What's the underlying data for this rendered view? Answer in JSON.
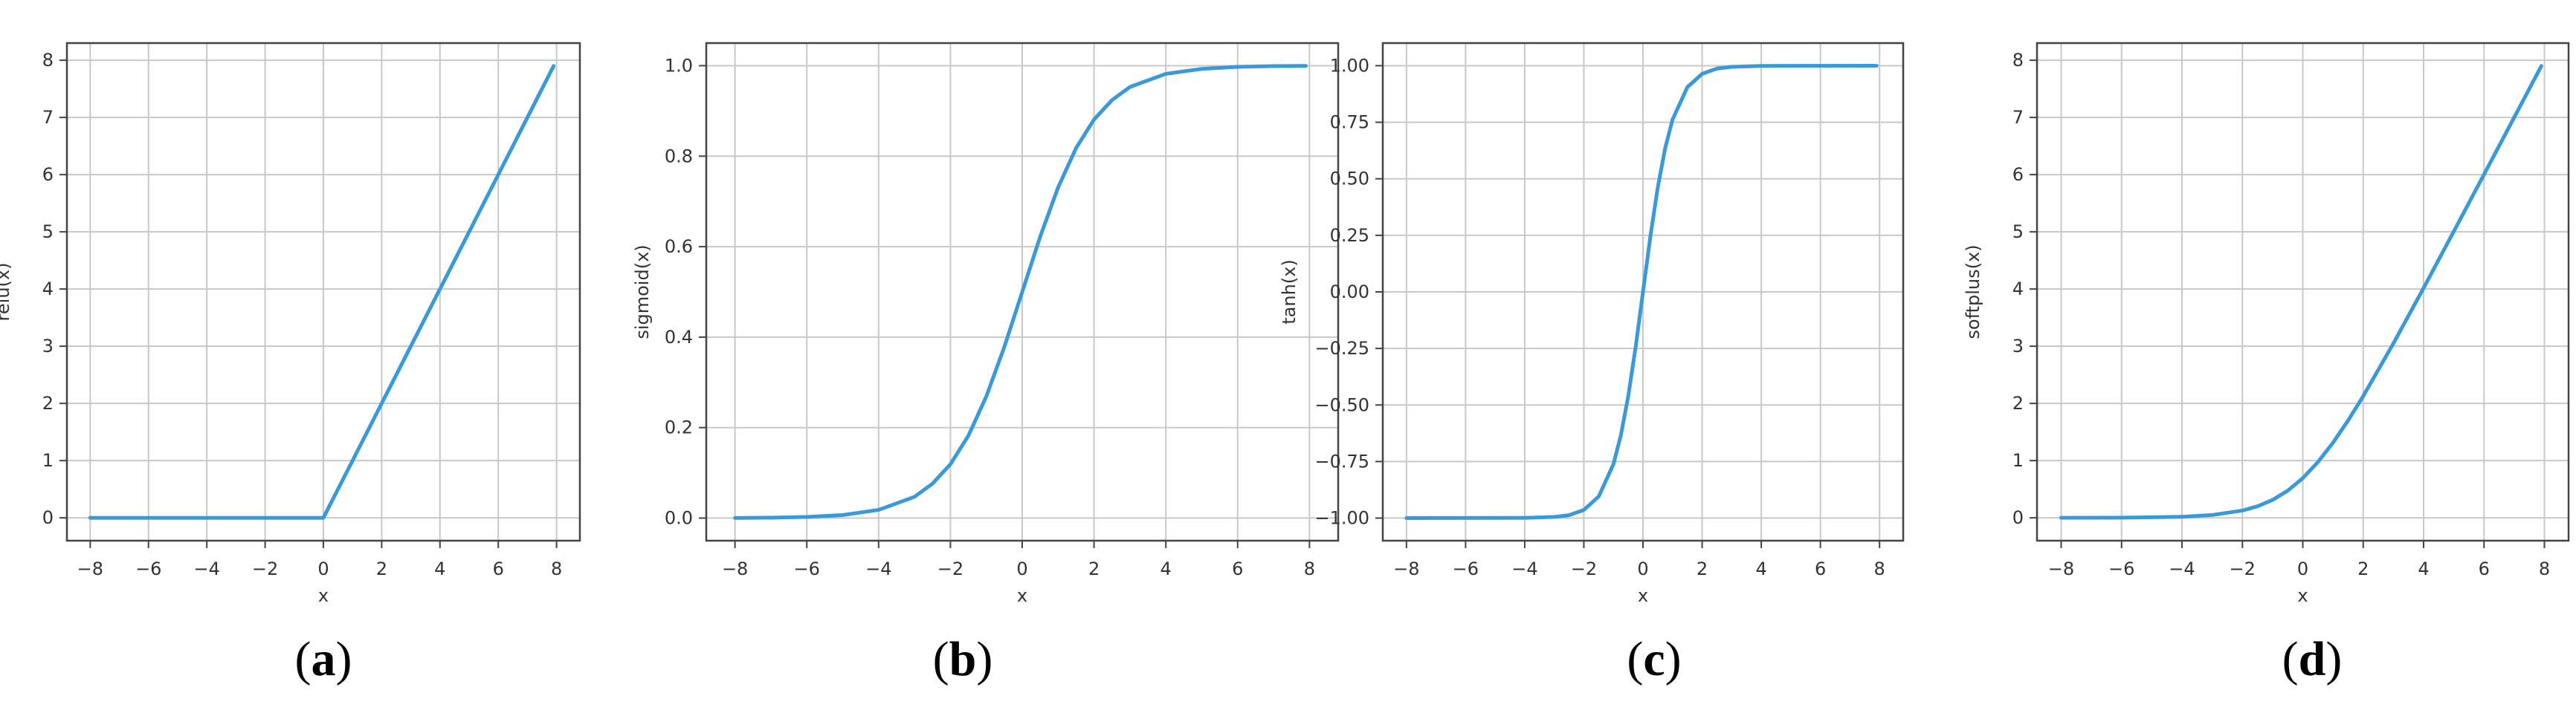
{
  "figure": {
    "panels": [
      {
        "label_letter": "a"
      },
      {
        "label_letter": "b"
      },
      {
        "label_letter": "c"
      },
      {
        "label_letter": "d"
      }
    ]
  },
  "style": {
    "line_color": "#3a9ad9",
    "grid_color": "#c8c8c8",
    "text_color": "#333333"
  },
  "chart_data": [
    {
      "type": "line",
      "xlabel": "x",
      "ylabel": "relu(x)",
      "xlim": [
        -8.8,
        8.8
      ],
      "ylim": [
        -0.4,
        8.3
      ],
      "xticks": [
        -8,
        -6,
        -4,
        -2,
        0,
        2,
        4,
        6,
        8
      ],
      "yticks": [
        0,
        1,
        2,
        3,
        4,
        5,
        6,
        7,
        8
      ],
      "ytick_labels": [
        "0",
        "1",
        "2",
        "3",
        "4",
        "5",
        "6",
        "7",
        "8"
      ],
      "grid": true,
      "series": [
        {
          "x": [
            -8,
            -6,
            -4,
            -2,
            0,
            2,
            4,
            6,
            7.9
          ],
          "y": [
            0,
            0,
            0,
            0,
            0,
            2,
            4,
            6,
            7.9
          ]
        }
      ]
    },
    {
      "type": "line",
      "xlabel": "x",
      "ylabel": "sigmoid(x)",
      "xlim": [
        -8.8,
        8.8
      ],
      "ylim": [
        -0.05,
        1.05
      ],
      "xticks": [
        -8,
        -6,
        -4,
        -2,
        0,
        2,
        4,
        6,
        8
      ],
      "yticks": [
        0,
        0.2,
        0.4,
        0.6,
        0.8,
        1.0
      ],
      "ytick_labels": [
        "0.0",
        "0.2",
        "0.4",
        "0.6",
        "0.8",
        "1.0"
      ],
      "grid": true,
      "series": [
        {
          "x": [
            -8,
            -7,
            -6,
            -5,
            -4,
            -3,
            -2.5,
            -2,
            -1.5,
            -1,
            -0.5,
            0,
            0.5,
            1,
            1.5,
            2,
            2.5,
            3,
            4,
            5,
            6,
            7,
            7.9
          ],
          "y": [
            0.0003,
            0.0009,
            0.0025,
            0.0067,
            0.018,
            0.047,
            0.076,
            0.119,
            0.182,
            0.269,
            0.378,
            0.5,
            0.622,
            0.731,
            0.818,
            0.881,
            0.924,
            0.953,
            0.982,
            0.993,
            0.9975,
            0.9991,
            0.9996
          ]
        }
      ]
    },
    {
      "type": "line",
      "xlabel": "x",
      "ylabel": "tanh(x)",
      "xlim": [
        -8.8,
        8.8
      ],
      "ylim": [
        -1.1,
        1.1
      ],
      "xticks": [
        -8,
        -6,
        -4,
        -2,
        0,
        2,
        4,
        6,
        8
      ],
      "yticks": [
        -1.0,
        -0.75,
        -0.5,
        -0.25,
        0,
        0.25,
        0.5,
        0.75,
        1.0
      ],
      "ytick_labels": [
        "-1.00",
        "-0.75",
        "-0.50",
        "-0.25",
        "0.00",
        "0.25",
        "0.50",
        "0.75",
        "1.00"
      ],
      "grid": true,
      "series": [
        {
          "x": [
            -8,
            -4,
            -3,
            -2.5,
            -2,
            -1.5,
            -1,
            -0.75,
            -0.5,
            -0.25,
            0,
            0.25,
            0.5,
            0.75,
            1,
            1.5,
            2,
            2.5,
            3,
            4,
            7.9
          ],
          "y": [
            -1.0,
            -0.999,
            -0.995,
            -0.987,
            -0.964,
            -0.905,
            -0.762,
            -0.635,
            -0.462,
            -0.245,
            0,
            0.245,
            0.462,
            0.635,
            0.762,
            0.905,
            0.964,
            0.987,
            0.995,
            0.999,
            1.0
          ]
        }
      ]
    },
    {
      "type": "line",
      "xlabel": "x",
      "ylabel": "softplus(x)",
      "xlim": [
        -8.8,
        8.8
      ],
      "ylim": [
        -0.4,
        8.3
      ],
      "xticks": [
        -8,
        -6,
        -4,
        -2,
        0,
        2,
        4,
        6,
        8
      ],
      "yticks": [
        0,
        1,
        2,
        3,
        4,
        5,
        6,
        7,
        8
      ],
      "ytick_labels": [
        "0",
        "1",
        "2",
        "3",
        "4",
        "5",
        "6",
        "7",
        "8"
      ],
      "grid": true,
      "series": [
        {
          "x": [
            -8,
            -6,
            -4,
            -3,
            -2,
            -1.5,
            -1,
            -0.5,
            0,
            0.5,
            1,
            1.5,
            2,
            3,
            4,
            5,
            6,
            7,
            7.9
          ],
          "y": [
            0.0003,
            0.0025,
            0.018,
            0.049,
            0.127,
            0.201,
            0.313,
            0.474,
            0.693,
            0.974,
            1.313,
            1.701,
            2.127,
            3.049,
            4.018,
            5.007,
            6.002,
            7.001,
            7.9
          ]
        }
      ]
    }
  ]
}
